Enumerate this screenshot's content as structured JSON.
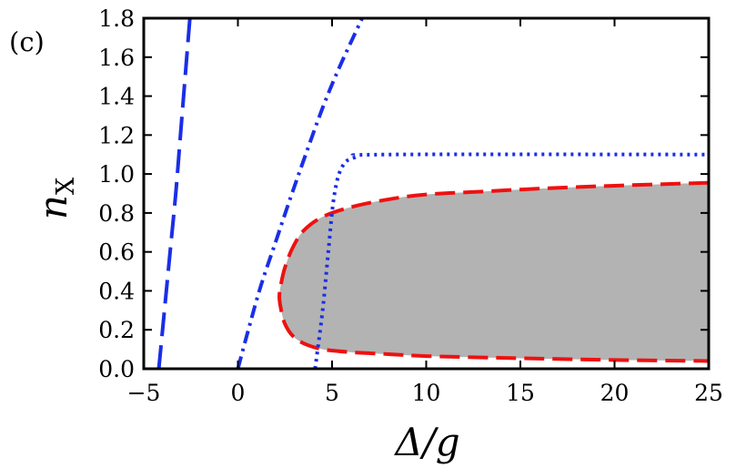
{
  "chart_data": {
    "type": "line",
    "panel_label": "(c)",
    "xlabel": "Δ/g",
    "ylabel_main": "n",
    "ylabel_sub": "X",
    "xlim": [
      -5,
      25
    ],
    "ylim": [
      0,
      1.8
    ],
    "xticks": [
      -5,
      0,
      5,
      10,
      15,
      20,
      25
    ],
    "xtick_labels": [
      "−5",
      "0",
      "5",
      "10",
      "15",
      "20",
      "25"
    ],
    "yticks": [
      0,
      0.2,
      0.4,
      0.6,
      0.8,
      1.0,
      1.2,
      1.4,
      1.6,
      1.8
    ],
    "ytick_labels": [
      "0.0",
      "0.2",
      "0.4",
      "0.6",
      "0.8",
      "1.0",
      "1.2",
      "1.4",
      "1.6",
      "1.8"
    ],
    "grid": false,
    "legend": "none",
    "colors": {
      "blue": "#1a2ee8",
      "red": "#ee1111",
      "region": "#b3b3b3"
    },
    "shaded_region": {
      "boundary_style": "dashed-red",
      "upper": [
        [
          2.2,
          0.37
        ],
        [
          2.3,
          0.44
        ],
        [
          2.5,
          0.52
        ],
        [
          2.9,
          0.62
        ],
        [
          3.5,
          0.71
        ],
        [
          4.5,
          0.78
        ],
        [
          6,
          0.83
        ],
        [
          8,
          0.87
        ],
        [
          10,
          0.895
        ],
        [
          13,
          0.91
        ],
        [
          16,
          0.925
        ],
        [
          20,
          0.94
        ],
        [
          25,
          0.955
        ]
      ],
      "lower": [
        [
          2.2,
          0.37
        ],
        [
          2.3,
          0.3
        ],
        [
          2.5,
          0.23
        ],
        [
          2.9,
          0.17
        ],
        [
          3.5,
          0.13
        ],
        [
          4.5,
          0.1
        ],
        [
          6,
          0.085
        ],
        [
          8,
          0.075
        ],
        [
          10,
          0.065
        ],
        [
          13,
          0.058
        ],
        [
          16,
          0.052
        ],
        [
          20,
          0.045
        ],
        [
          25,
          0.04
        ]
      ]
    },
    "series": [
      {
        "style": "dashed-blue",
        "points": [
          [
            -4.2,
            0
          ],
          [
            -3.9,
            0.3
          ],
          [
            -3.6,
            0.6
          ],
          [
            -3.3,
            0.9
          ],
          [
            -3.05,
            1.2
          ],
          [
            -2.8,
            1.5
          ],
          [
            -2.55,
            1.8
          ]
        ]
      },
      {
        "style": "dashdot-blue",
        "points": [
          [
            0,
            0
          ],
          [
            0.5,
            0.18
          ],
          [
            1.2,
            0.42
          ],
          [
            2,
            0.65
          ],
          [
            2.8,
            0.88
          ],
          [
            3.6,
            1.1
          ],
          [
            4.5,
            1.34
          ],
          [
            5.4,
            1.55
          ],
          [
            6.6,
            1.8
          ]
        ]
      },
      {
        "style": "dotted-blue",
        "points": [
          [
            4.1,
            0
          ],
          [
            4.5,
            0.3
          ],
          [
            4.8,
            0.6
          ],
          [
            5.1,
            0.88
          ],
          [
            5.5,
            1.03
          ],
          [
            6.2,
            1.085
          ],
          [
            8,
            1.1
          ],
          [
            25,
            1.1
          ]
        ]
      }
    ]
  }
}
